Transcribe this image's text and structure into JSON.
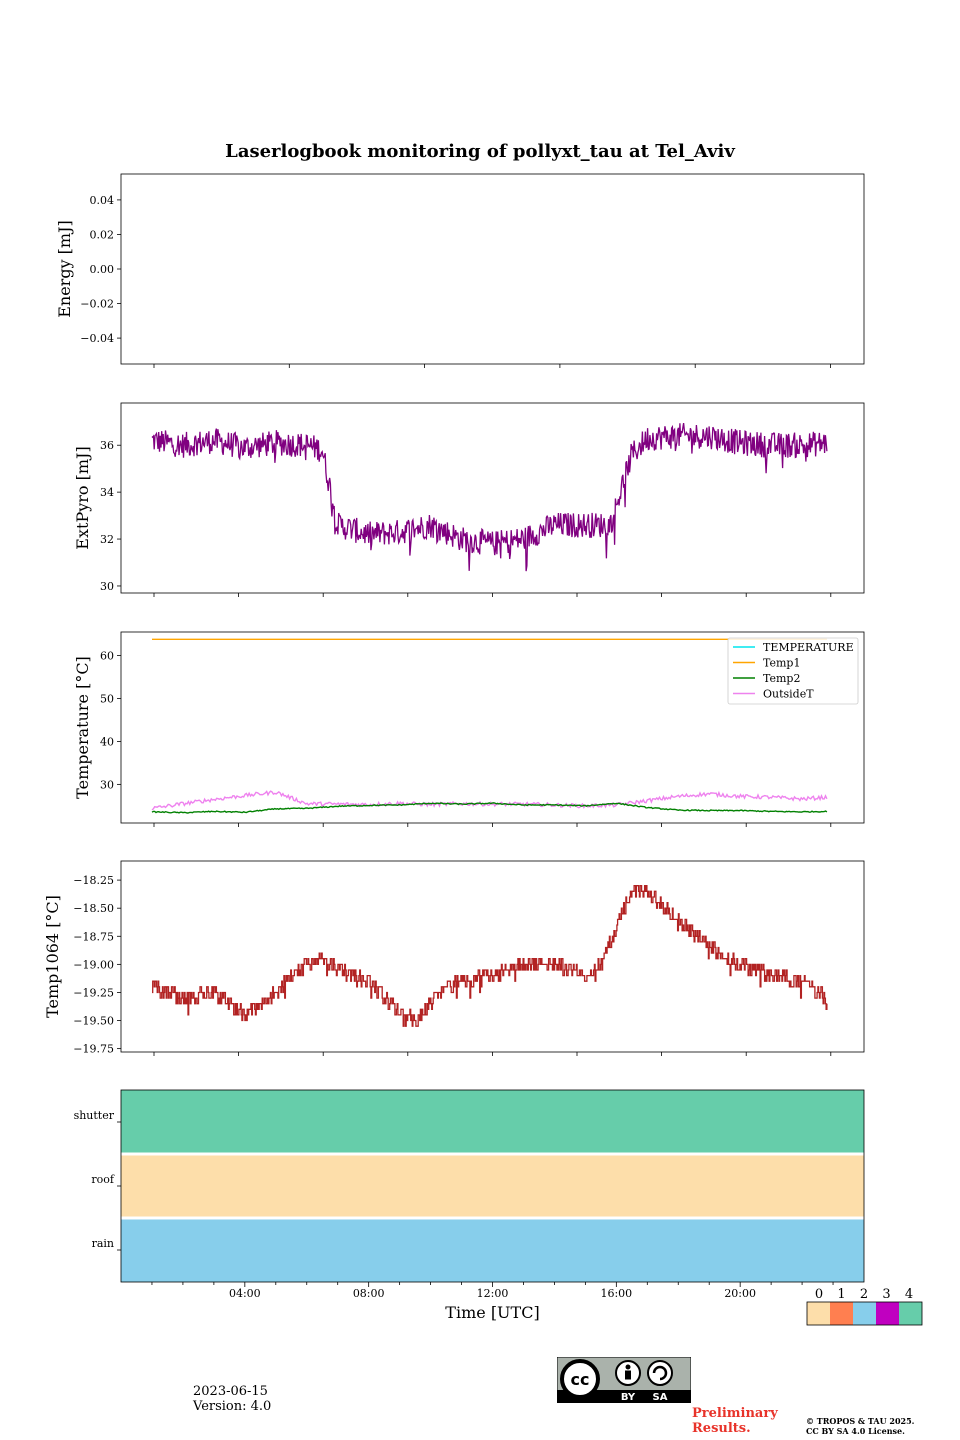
{
  "title": "Laserlogbook monitoring of pollyxt_tau at Tel_Aviv",
  "footer": {
    "date": "2023-06-15",
    "version": "Version: 4.0",
    "preliminary_line1": "Preliminary",
    "preliminary_line2": "Results.",
    "copyright_line1": "© TROPOS & TAU 2025.",
    "copyright_line2": "CC BY SA 4.0 License.",
    "cc_labels": [
      "BY",
      "SA"
    ]
  },
  "colors": {
    "extpyro": "#800080",
    "temperature": "#00e5ee",
    "temp1": "#ffa500",
    "temp2": "#008000",
    "outsideT": "#ee82ee",
    "temp1064": "#b22222",
    "status0": "#fddeaa",
    "status1": "#ff7f50",
    "status2": "#87ceeb",
    "status3": "#c000c0",
    "status4": "#66cdaa"
  },
  "chart_data": [
    {
      "type": "line",
      "name": "energy",
      "ylabel": "Energy [mJ]",
      "ylim": [
        -0.055,
        0.055
      ],
      "yticks": [
        0.04,
        0.02,
        0.0,
        -0.02,
        -0.04
      ],
      "ytick_labels": [
        "0.04",
        "0.02",
        "0.00",
        "−0.02",
        "−0.04"
      ],
      "series": []
    },
    {
      "type": "line",
      "name": "extpyro",
      "ylabel": "ExtPyro [mJ]",
      "ylim": [
        29.7,
        37.8
      ],
      "yticks": [
        30,
        32,
        34,
        36
      ],
      "ytick_labels": [
        "30",
        "32",
        "34",
        "36"
      ],
      "x_hours": [
        1,
        2,
        3,
        4,
        5,
        6,
        6.5,
        7,
        8,
        9,
        10,
        11,
        12,
        13,
        14,
        15,
        15.8,
        16.5,
        17,
        18,
        19,
        20,
        21,
        22,
        22.8
      ],
      "series": [
        {
          "name": "ExtPyro",
          "values": [
            36.2,
            36.0,
            36.2,
            35.9,
            36.1,
            36.0,
            35.8,
            32.6,
            32.2,
            32.3,
            32.6,
            32.0,
            31.8,
            32.0,
            32.6,
            32.6,
            32.6,
            35.6,
            36.3,
            36.4,
            36.4,
            36.1,
            36.0,
            36.0,
            36.1
          ]
        }
      ],
      "noise": 0.55
    },
    {
      "type": "line",
      "name": "temperature",
      "ylabel": "Temperature [°C]",
      "ylim": [
        21,
        65.5
      ],
      "yticks": [
        30,
        40,
        50,
        60
      ],
      "ytick_labels": [
        "30",
        "40",
        "50",
        "60"
      ],
      "legend_position": "top-right",
      "x_hours": [
        1,
        2,
        3,
        4,
        5,
        6,
        7,
        8,
        9,
        10,
        11,
        12,
        13,
        14,
        15,
        16,
        17,
        18,
        19,
        20,
        21,
        22,
        22.8
      ],
      "series": [
        {
          "name": "TEMPERATURE",
          "values": []
        },
        {
          "name": "Temp1",
          "values": [
            63.8,
            63.8,
            63.8,
            63.8,
            63.8,
            63.8,
            63.8,
            63.8,
            63.8,
            63.8,
            63.8,
            63.8,
            63.8,
            63.8,
            63.8,
            63.8,
            63.8,
            63.8,
            63.8,
            63.8,
            63.8,
            63.8,
            63.8
          ]
        },
        {
          "name": "Temp2",
          "values": [
            23.6,
            23.4,
            23.7,
            23.5,
            24.3,
            24.4,
            24.9,
            25.1,
            25.2,
            25.6,
            25.4,
            25.6,
            25.2,
            25.2,
            25.0,
            25.6,
            24.6,
            24.0,
            23.9,
            23.9,
            23.7,
            23.6,
            23.7
          ]
        },
        {
          "name": "OutsideT",
          "values": [
            24.4,
            25.5,
            26.5,
            27.4,
            28.2,
            25.5,
            25.4,
            25.3,
            25.6,
            25.3,
            25.5,
            25.4,
            25.4,
            25.2,
            25.0,
            25.2,
            26.2,
            27.2,
            27.8,
            27.2,
            27.0,
            26.6,
            27.0
          ]
        }
      ]
    },
    {
      "type": "line",
      "name": "temp1064",
      "ylabel": "Temp1064 [°C]",
      "ylim": [
        -19.78,
        -18.08
      ],
      "yticks": [
        -18.25,
        -18.5,
        -18.75,
        -19.0,
        -19.25,
        -19.5,
        -19.75
      ],
      "ytick_labels": [
        "−18.25",
        "−18.50",
        "−18.75",
        "−19.00",
        "−19.25",
        "−19.50",
        "−19.75"
      ],
      "x_hours": [
        1,
        2,
        3,
        3.5,
        4,
        5,
        5.5,
        6,
        6.5,
        7,
        8,
        8.7,
        9.5,
        10.5,
        11,
        12,
        13,
        14,
        15,
        15.5,
        16.5,
        17,
        18,
        19,
        20,
        21,
        22,
        22.8
      ],
      "series": [
        {
          "name": "Temp1064",
          "values": [
            -19.2,
            -19.3,
            -19.25,
            -19.35,
            -19.45,
            -19.25,
            -19.1,
            -19.0,
            -18.95,
            -19.05,
            -19.15,
            -19.35,
            -19.5,
            -19.2,
            -19.15,
            -19.1,
            -19.0,
            -19.0,
            -19.1,
            -19.0,
            -18.35,
            -18.35,
            -18.6,
            -18.85,
            -19.0,
            -19.1,
            -19.15,
            -19.3
          ]
        }
      ],
      "step": 0.05
    },
    {
      "type": "heatmap",
      "name": "status",
      "xlabel": "Time [UTC]",
      "xlim_hours": [
        0,
        24
      ],
      "xticks_hours": [
        4,
        8,
        12,
        16,
        20
      ],
      "xtick_labels": [
        "04:00",
        "08:00",
        "12:00",
        "16:00",
        "20:00"
      ],
      "rows": [
        {
          "label": "shutter",
          "status": 4
        },
        {
          "label": "roof",
          "status": 0
        },
        {
          "label": "rain",
          "status": 2
        }
      ],
      "colorbar_ticks": [
        "0",
        "1",
        "2",
        "3",
        "4"
      ]
    }
  ]
}
